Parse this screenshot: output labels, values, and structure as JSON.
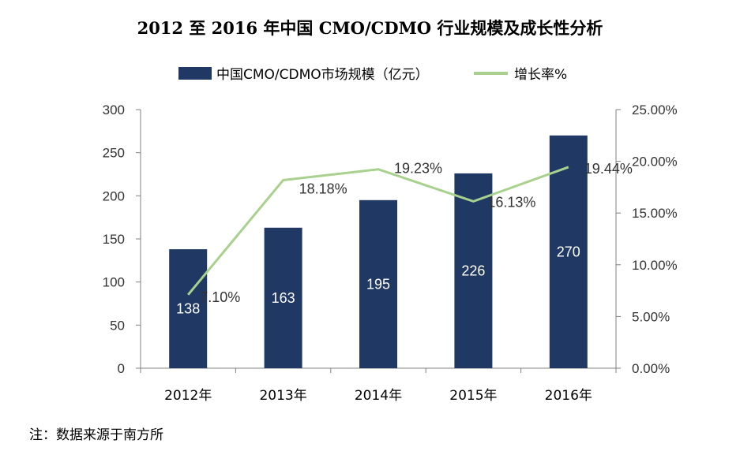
{
  "title": "2012 至 2016 年中国 CMO/CDMO 行业规模及成长性分析",
  "legend": {
    "bar_label": "中国CMO/CDMO市场规模（亿元）",
    "line_label": "增长率%"
  },
  "note": "注：数据来源于南方所",
  "colors": {
    "bar": "#1f3864",
    "line": "#a9d18e",
    "axis": "#808080"
  },
  "chart_data": {
    "type": "bar",
    "title": "2012 至 2016 年中国 CMO/CDMO 行业规模及成长性分析",
    "categories": [
      "2012年",
      "2013年",
      "2014年",
      "2015年",
      "2016年"
    ],
    "series": [
      {
        "name": "中国CMO/CDMO市场规模（亿元）",
        "type": "bar",
        "axis": "left",
        "values": [
          138,
          163,
          195,
          226,
          270
        ],
        "labels": [
          "138",
          "163",
          "195",
          "226",
          "270"
        ]
      },
      {
        "name": "增长率%",
        "type": "line",
        "axis": "right",
        "values": [
          7.1,
          18.18,
          19.23,
          16.13,
          19.44
        ],
        "labels": [
          "7.10%",
          "18.18%",
          "19.23%",
          "16.13%",
          "19.44%"
        ]
      }
    ],
    "y_left": {
      "ylim": [
        0,
        300
      ],
      "ticks": [
        "0",
        "50",
        "100",
        "150",
        "200",
        "250",
        "300"
      ]
    },
    "y_right": {
      "ylim": [
        0,
        25
      ],
      "ticks": [
        "0.00%",
        "5.00%",
        "10.00%",
        "15.00%",
        "20.00%",
        "25.00%"
      ]
    },
    "grid": false,
    "legend_position": "top"
  }
}
